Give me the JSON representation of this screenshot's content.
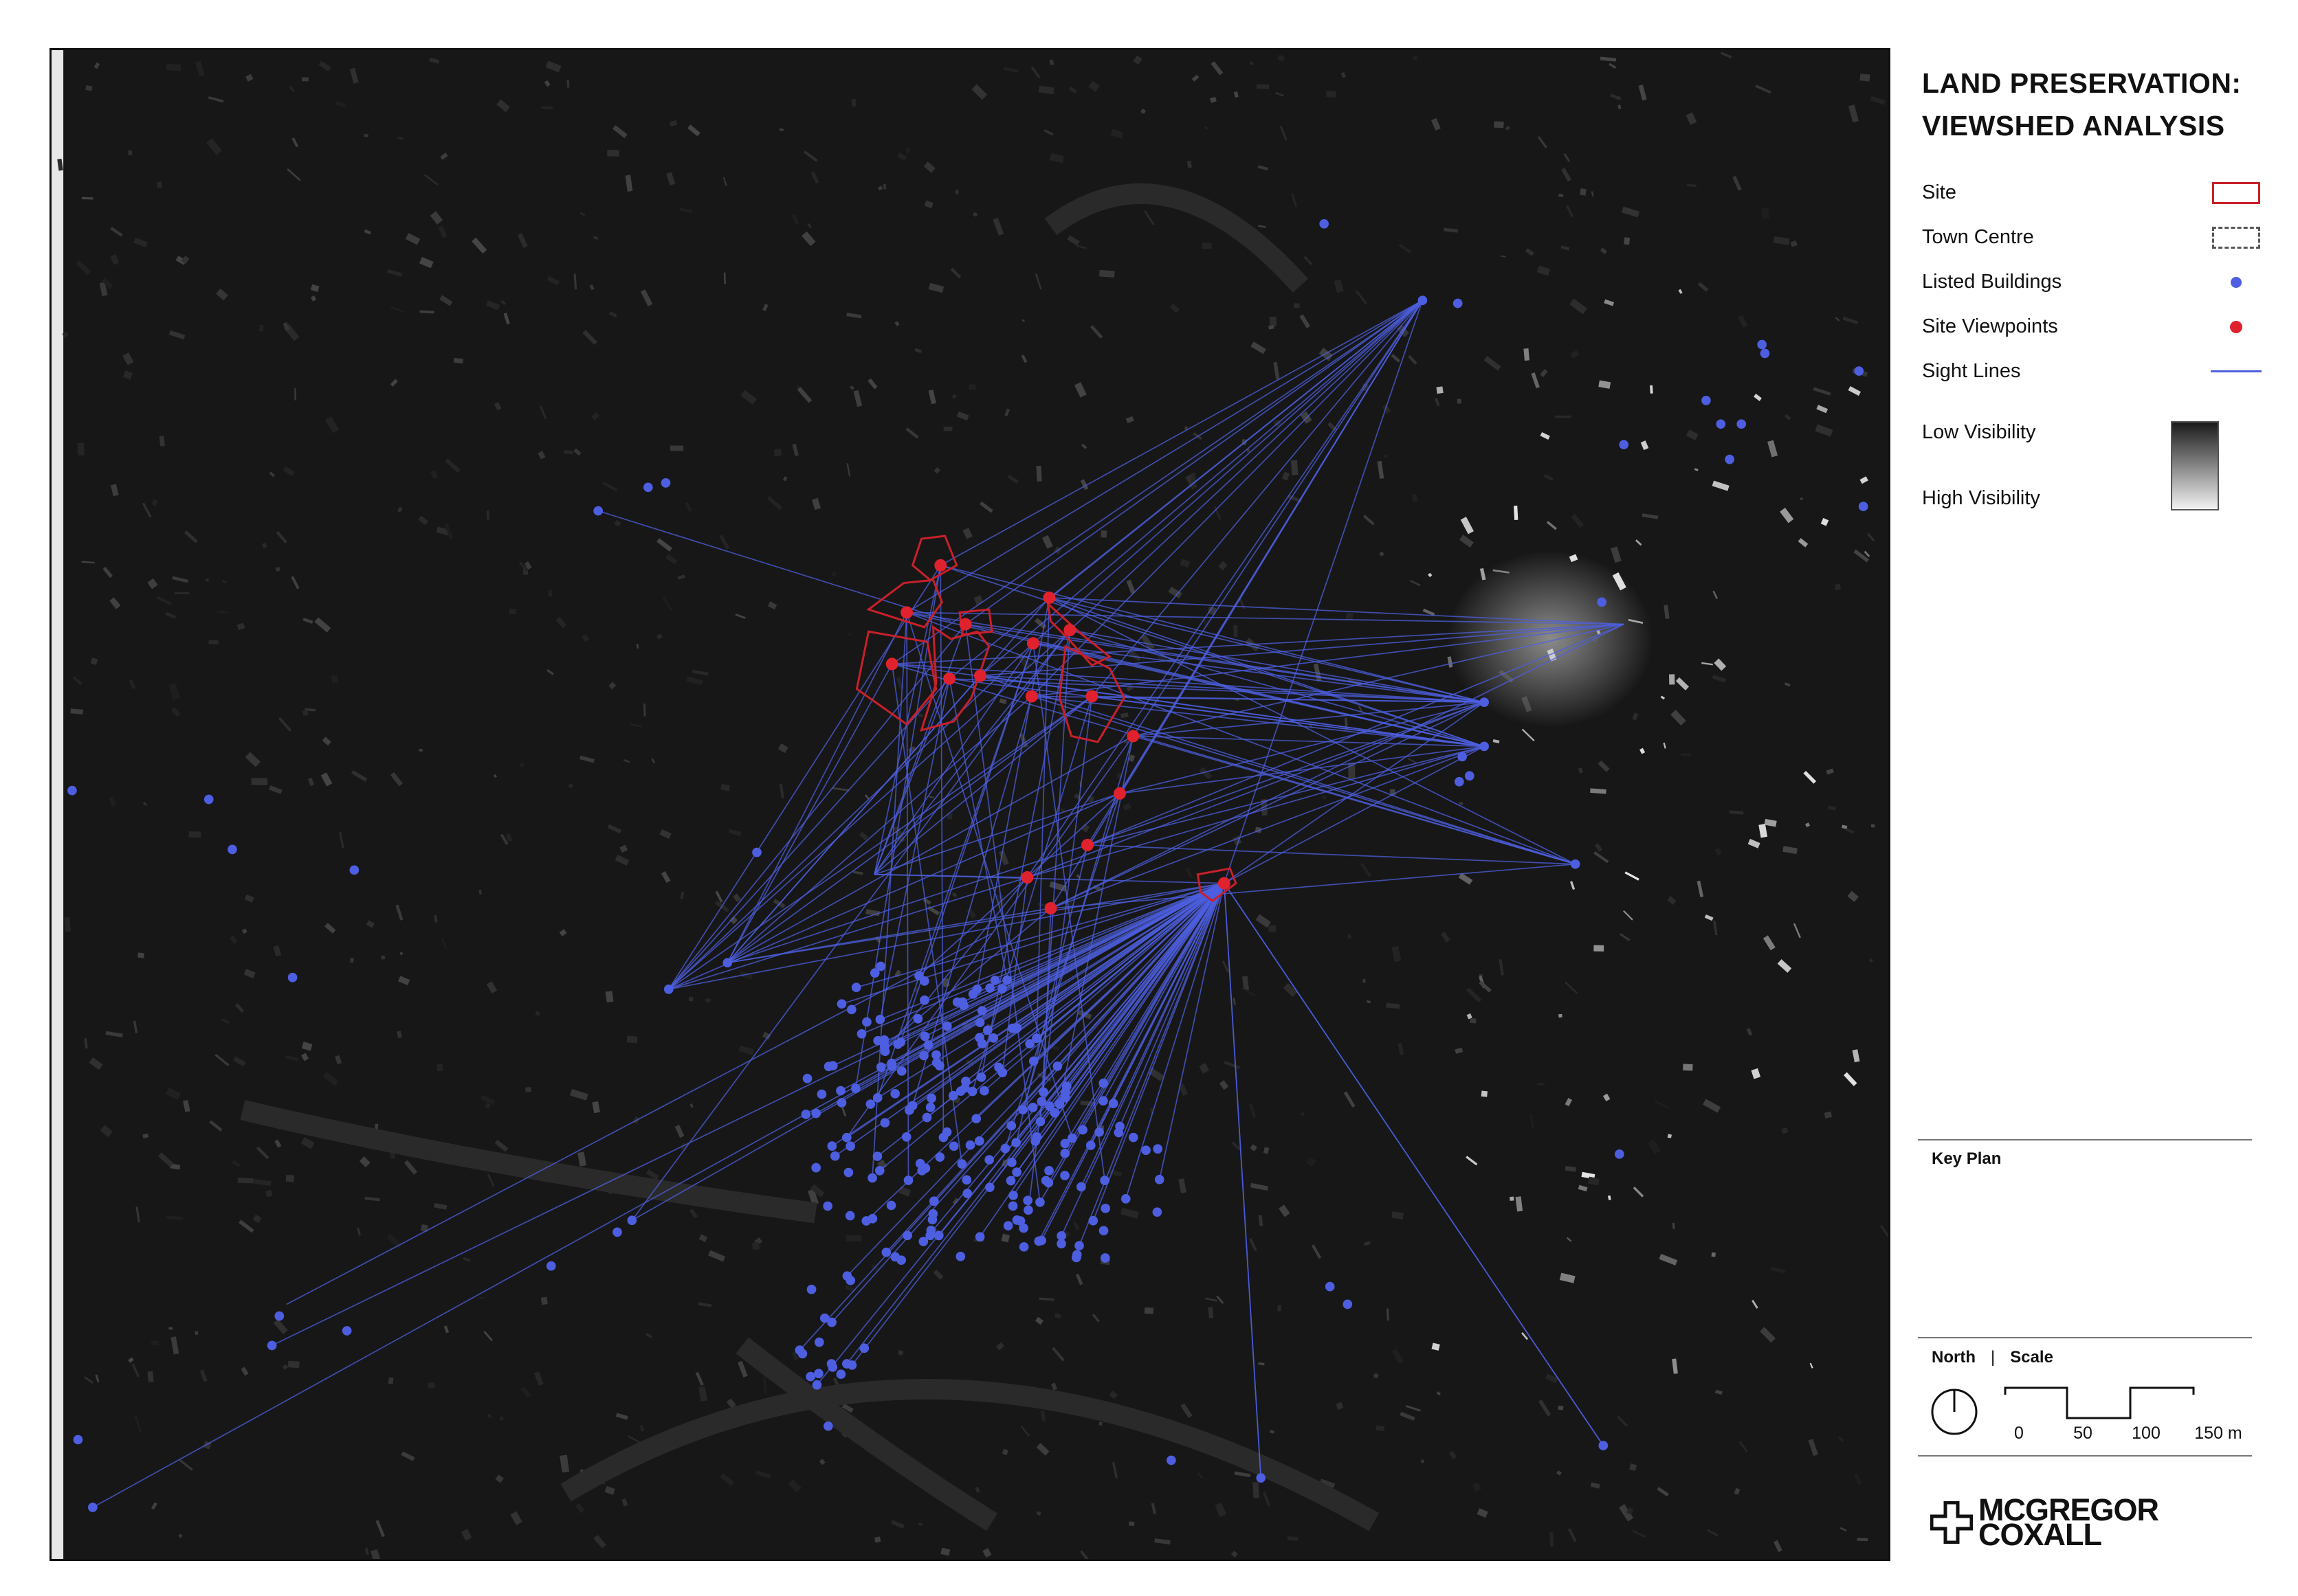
{
  "title_line1": "LAND PRESERVATION:",
  "title_line2": "VIEWSHED ANALYSIS",
  "legend": {
    "site": "Site",
    "town_centre": "Town Centre",
    "listed_buildings": "Listed Buildings",
    "site_viewpoints": "Site Viewpoints",
    "sight_lines": "Sight Lines",
    "low_visibility": "Low Visibility",
    "high_visibility": "High Visibility"
  },
  "colors": {
    "site": "#c8202a",
    "town_centre": "#555555",
    "listed_buildings": "#4d5fe0",
    "site_viewpoints": "#e0222e",
    "sight_lines": "#4d5fe0"
  },
  "key_plan": "Key Plan",
  "north_label": "North",
  "scale_label": "Scale",
  "separator": "|",
  "scale": {
    "ticks": [
      "0",
      "50",
      "100",
      "150 m"
    ],
    "values_m": [
      0,
      50,
      100,
      150
    ]
  },
  "icons": [
    "north-arrow-icon",
    "company-cross-logo-icon"
  ],
  "company": {
    "line1": "MCGREGOR",
    "line2": "COXALL"
  }
}
